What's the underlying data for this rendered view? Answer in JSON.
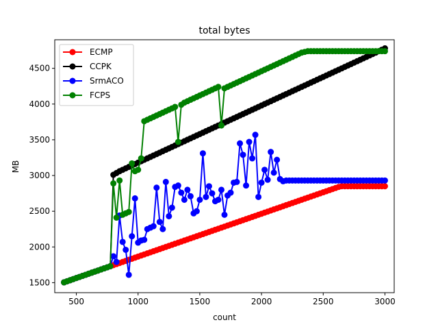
{
  "chart_data": {
    "type": "line",
    "title": "total bytes",
    "xlabel": "count",
    "ylabel": "MB",
    "xlim": [
      325,
      3075
    ],
    "ylim": [
      1360,
      4900
    ],
    "xticks": [
      500,
      1000,
      1500,
      2000,
      2500,
      3000
    ],
    "yticks": [
      1500,
      2000,
      2500,
      3000,
      3500,
      4000,
      4500
    ],
    "xtick_labels": [
      "500",
      "1000",
      "1500",
      "2000",
      "2500",
      "3000"
    ],
    "ytick_labels": [
      "1500",
      "2000",
      "2500",
      "3000",
      "3500",
      "4000",
      "4500"
    ],
    "legend_position": "upper-left",
    "x": [
      400,
      425,
      450,
      475,
      500,
      525,
      550,
      575,
      600,
      625,
      650,
      675,
      700,
      725,
      750,
      775,
      800,
      825,
      850,
      875,
      900,
      925,
      950,
      975,
      1000,
      1025,
      1050,
      1075,
      1100,
      1125,
      1150,
      1175,
      1200,
      1225,
      1250,
      1275,
      1300,
      1325,
      1350,
      1375,
      1400,
      1425,
      1450,
      1475,
      1500,
      1525,
      1550,
      1575,
      1600,
      1625,
      1650,
      1675,
      1700,
      1725,
      1750,
      1775,
      1800,
      1825,
      1850,
      1875,
      1900,
      1925,
      1950,
      1975,
      2000,
      2025,
      2050,
      2075,
      2100,
      2125,
      2150,
      2175,
      2200,
      2225,
      2250,
      2275,
      2300,
      2325,
      2350,
      2375,
      2400,
      2425,
      2450,
      2475,
      2500,
      2525,
      2550,
      2575,
      2600,
      2625,
      2650,
      2675,
      2700,
      2725,
      2750,
      2775,
      2800,
      2825,
      2850,
      2875,
      2900,
      2925,
      2950,
      2975,
      3000
    ],
    "series": [
      {
        "name": "ECMP",
        "color": "#ff0000",
        "values": [
          1505,
          1520,
          1535,
          1550,
          1565,
          1580,
          1595,
          1610,
          1625,
          1640,
          1655,
          1670,
          1685,
          1700,
          1715,
          1730,
          1745,
          1760,
          1775,
          1790,
          1805,
          1820,
          1835,
          1850,
          1865,
          1880,
          1895,
          1910,
          1925,
          1940,
          1955,
          1970,
          1985,
          2000,
          2015,
          2030,
          2045,
          2060,
          2075,
          2090,
          2105,
          2120,
          2135,
          2150,
          2165,
          2180,
          2195,
          2210,
          2225,
          2240,
          2255,
          2270,
          2285,
          2300,
          2315,
          2330,
          2345,
          2360,
          2375,
          2390,
          2405,
          2420,
          2435,
          2450,
          2465,
          2480,
          2495,
          2510,
          2525,
          2540,
          2555,
          2570,
          2585,
          2600,
          2615,
          2630,
          2645,
          2660,
          2675,
          2690,
          2705,
          2720,
          2735,
          2750,
          2765,
          2780,
          2795,
          2810,
          2825,
          2840,
          2850,
          2850,
          2850,
          2850,
          2850,
          2850,
          2850,
          2850,
          2850,
          2850,
          2850,
          2850,
          2850,
          2850,
          2850
        ]
      },
      {
        "name": "CCPK",
        "color": "#000000",
        "values": [
          1505,
          1520,
          1535,
          1550,
          1565,
          1580,
          1595,
          1610,
          1625,
          1640,
          1655,
          1670,
          1685,
          1700,
          1715,
          1730,
          3010,
          3035,
          3060,
          3080,
          3100,
          3120,
          3140,
          3160,
          3180,
          3200,
          3220,
          3240,
          3260,
          3280,
          3300,
          3320,
          3340,
          3360,
          3380,
          3400,
          3420,
          3440,
          3460,
          3480,
          3500,
          3520,
          3540,
          3560,
          3580,
          3600,
          3620,
          3640,
          3660,
          3680,
          3700,
          3720,
          3740,
          3760,
          3780,
          3800,
          3820,
          3840,
          3860,
          3880,
          3900,
          3920,
          3940,
          3960,
          3980,
          4000,
          4020,
          4040,
          4060,
          4080,
          4100,
          4120,
          4140,
          4160,
          4180,
          4200,
          4220,
          4240,
          4260,
          4280,
          4300,
          4320,
          4340,
          4360,
          4380,
          4400,
          4420,
          4440,
          4460,
          4480,
          4500,
          4520,
          4540,
          4560,
          4580,
          4600,
          4620,
          4640,
          4660,
          4680,
          4700,
          4720,
          4740,
          4760,
          4780
        ]
      },
      {
        "name": "SrmACO",
        "color": "#0000ff",
        "values": [
          1505,
          1520,
          1535,
          1550,
          1565,
          1580,
          1595,
          1610,
          1625,
          1640,
          1655,
          1670,
          1685,
          1700,
          1715,
          1730,
          1870,
          1790,
          2440,
          2070,
          1960,
          1610,
          2150,
          2680,
          2060,
          2090,
          2100,
          2250,
          2270,
          2290,
          2830,
          2350,
          2250,
          2910,
          2430,
          2550,
          2840,
          2860,
          2760,
          2660,
          2800,
          2710,
          2470,
          2500,
          2660,
          3310,
          2700,
          2850,
          2750,
          2640,
          2660,
          2800,
          2450,
          2720,
          2760,
          2900,
          2910,
          3450,
          3290,
          2860,
          3470,
          3240,
          3570,
          2700,
          2900,
          3080,
          2940,
          3330,
          3040,
          3220,
          2950,
          2920,
          2930,
          2930,
          2930,
          2930,
          2930,
          2930,
          2930,
          2930,
          2930,
          2930,
          2930,
          2930,
          2930,
          2930,
          2930,
          2930,
          2930,
          2930,
          2930,
          2930,
          2930,
          2930,
          2930,
          2930,
          2930,
          2930,
          2930,
          2930,
          2930,
          2930,
          2930,
          2930,
          2930
        ]
      },
      {
        "name": "FCPS",
        "color": "#008000",
        "values": [
          1505,
          1520,
          1535,
          1550,
          1565,
          1580,
          1595,
          1610,
          1625,
          1640,
          1655,
          1670,
          1685,
          1700,
          1715,
          1730,
          2890,
          2410,
          2930,
          2450,
          2470,
          2490,
          3170,
          3060,
          3080,
          3240,
          3760,
          3780,
          3800,
          3820,
          3840,
          3860,
          3880,
          3900,
          3920,
          3940,
          3960,
          3470,
          3990,
          4020,
          4040,
          4060,
          4080,
          4100,
          4120,
          4140,
          4160,
          4180,
          4200,
          4220,
          4240,
          3700,
          4220,
          4240,
          4260,
          4280,
          4300,
          4320,
          4340,
          4360,
          4380,
          4400,
          4420,
          4440,
          4460,
          4480,
          4500,
          4520,
          4540,
          4560,
          4580,
          4600,
          4620,
          4640,
          4660,
          4680,
          4700,
          4720,
          4730,
          4740,
          4740,
          4740,
          4740,
          4740,
          4740,
          4740,
          4740,
          4740,
          4740,
          4740,
          4740,
          4740,
          4740,
          4740,
          4740,
          4740,
          4740,
          4740,
          4740,
          4740,
          4740,
          4740,
          4740,
          4740,
          4740
        ]
      }
    ]
  }
}
